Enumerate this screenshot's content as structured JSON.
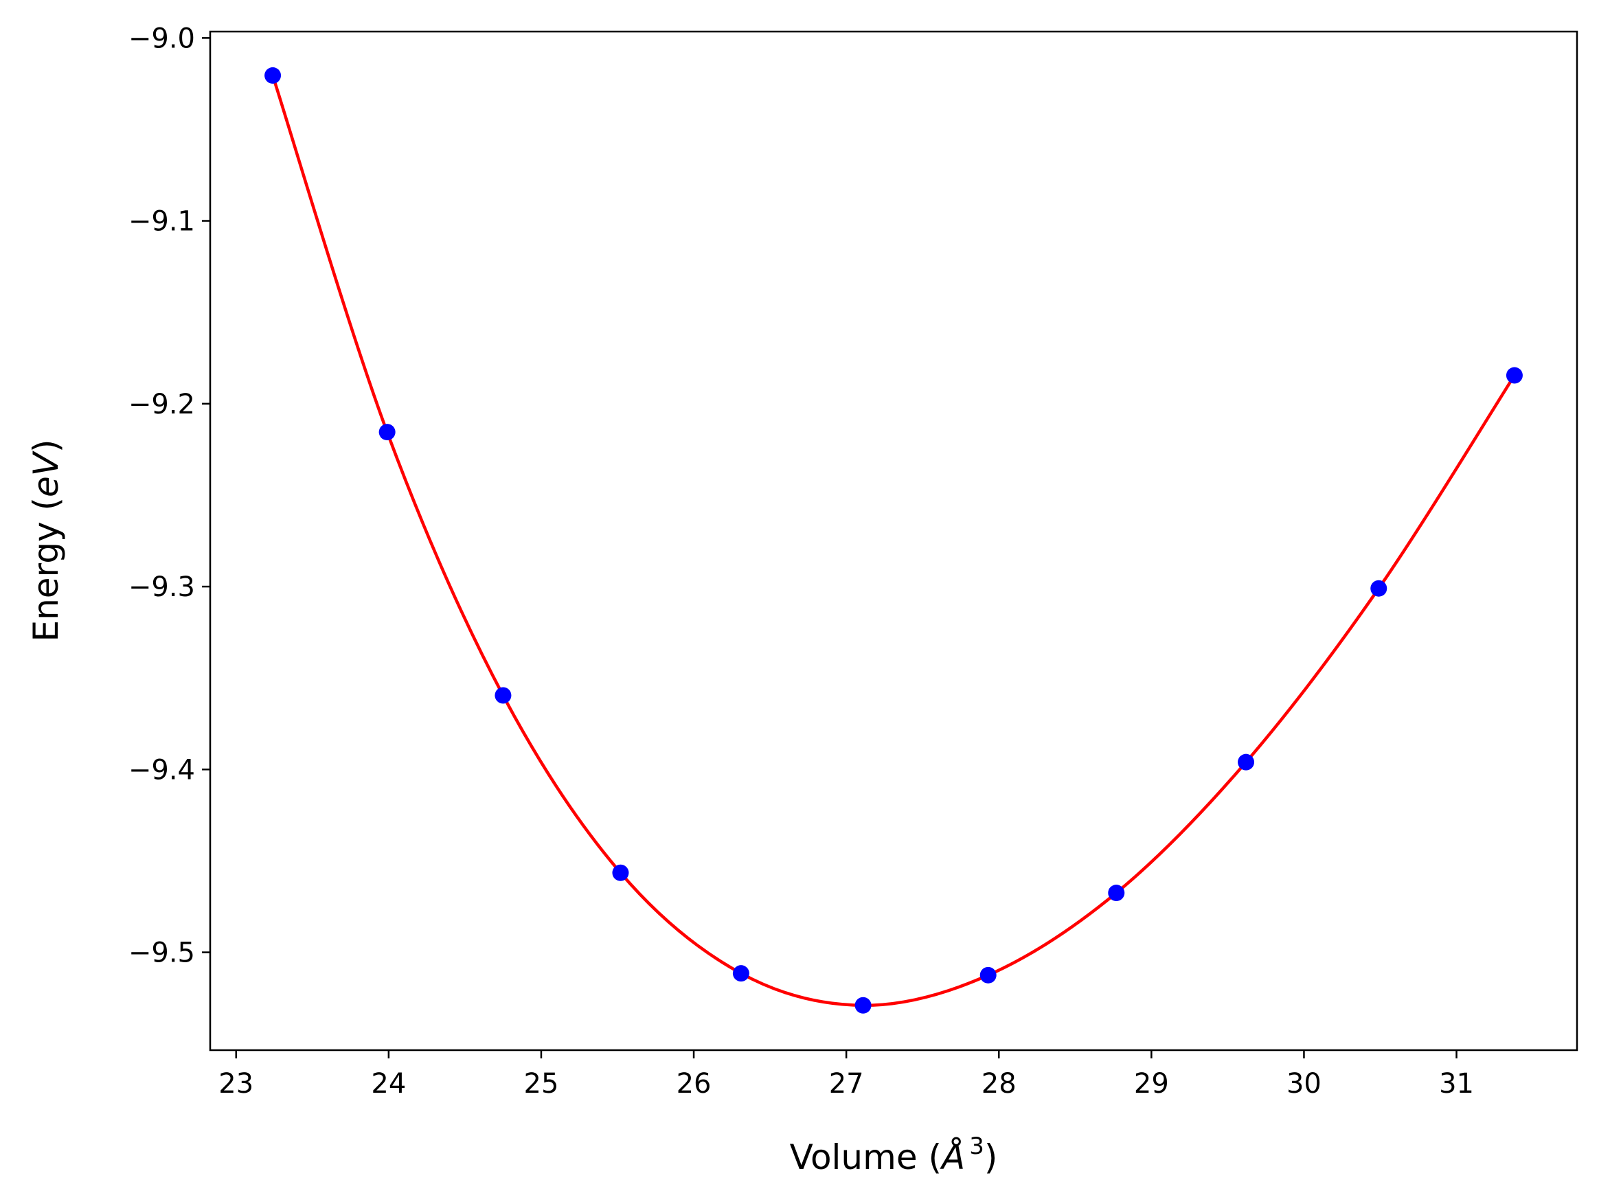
{
  "chart_data": {
    "type": "scatter",
    "title": "",
    "xlabel_main": "Volume (",
    "xlabel_unit": "Å",
    "xlabel_exp": "3",
    "xlabel_close": ")",
    "ylabel_main": "Energy (",
    "ylabel_unit": "eV",
    "ylabel_close": ")",
    "xlim": [
      22.83,
      31.79
    ],
    "ylim": [
      -9.5535,
      -8.9965
    ],
    "xticks": [
      23,
      24,
      25,
      26,
      27,
      28,
      29,
      30,
      31
    ],
    "xtick_labels": [
      "23",
      "24",
      "25",
      "26",
      "27",
      "28",
      "29",
      "30",
      "31"
    ],
    "yticks": [
      -9.0,
      -9.1,
      -9.2,
      -9.3,
      -9.4,
      -9.5
    ],
    "ytick_labels": [
      "−9.0",
      "−9.1",
      "−9.2",
      "−9.3",
      "−9.4",
      "−9.5"
    ],
    "grid": false,
    "series": [
      {
        "name": "data",
        "kind": "scatter",
        "color": "#0000ff",
        "x": [
          23.24,
          23.99,
          24.75,
          25.52,
          26.31,
          27.11,
          27.93,
          28.77,
          29.62,
          30.49,
          31.38
        ],
        "y": [
          -9.0205,
          -9.2155,
          -9.3595,
          -9.4565,
          -9.5115,
          -9.529,
          -9.5125,
          -9.4675,
          -9.396,
          -9.301,
          -9.1845
        ]
      },
      {
        "name": "fit",
        "kind": "line",
        "color": "#ff0000",
        "x": [
          23.24,
          23.99,
          24.75,
          25.52,
          26.31,
          27.11,
          27.93,
          28.77,
          29.62,
          30.49,
          31.38
        ],
        "y": [
          -9.0205,
          -9.2155,
          -9.3595,
          -9.4565,
          -9.5115,
          -9.529,
          -9.5125,
          -9.4675,
          -9.396,
          -9.301,
          -9.1845
        ]
      }
    ]
  }
}
